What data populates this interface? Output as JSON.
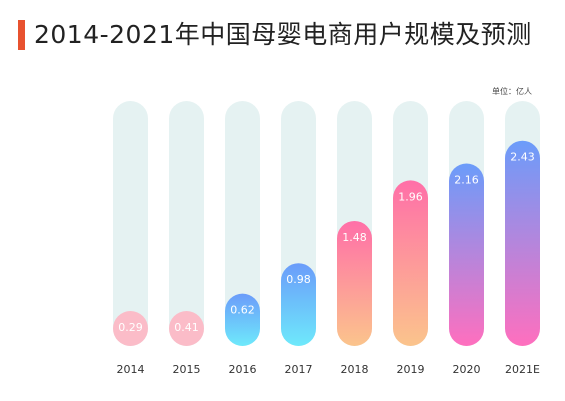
{
  "header": {
    "title": "2014-2021年中国母婴电商用户规模及预测",
    "accent_color": "#e8522f"
  },
  "chart_data": {
    "type": "bar",
    "title": "2014-2021年中国母婴电商用户规模及预测",
    "unit_label": "单位：亿人",
    "categories": [
      "2014",
      "2015",
      "2016",
      "2017",
      "2018",
      "2019",
      "2020",
      "2021E"
    ],
    "values": [
      0.29,
      0.41,
      0.62,
      0.98,
      1.48,
      1.96,
      2.16,
      2.43
    ],
    "value_labels": [
      "0.29",
      "0.41",
      "0.62",
      "0.98",
      "1.48",
      "1.96",
      "2.16",
      "2.43"
    ],
    "ylim": [
      0,
      2.9
    ],
    "grid": false,
    "legend": "none",
    "colors": {
      "track": "#e5f2f2",
      "gradients": [
        [
          "#fbbcc8",
          "#fbbcc8"
        ],
        [
          "#fbbcc8",
          "#fbbcc8"
        ],
        [
          "#6b9cfa",
          "#6ee9fb"
        ],
        [
          "#6b9cfa",
          "#6ee9fb"
        ],
        [
          "#ff6fa8",
          "#fbc48c"
        ],
        [
          "#ff6fa8",
          "#fbc48c"
        ],
        [
          "#6b9cfa",
          "#ff6fbe"
        ],
        [
          "#6b9cfa",
          "#ff6fbe"
        ]
      ]
    }
  }
}
